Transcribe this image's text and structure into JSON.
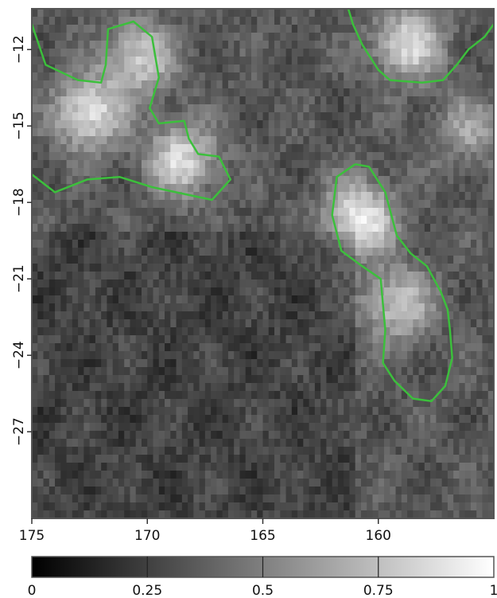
{
  "chart_data": {
    "type": "heatmap",
    "title": "",
    "xlabel": "",
    "ylabel": "",
    "colormap": "grayscale",
    "x_axis": {
      "range": [
        175,
        155
      ],
      "ticks": [
        175,
        170,
        165,
        160
      ],
      "tick_labels": [
        "175",
        "170",
        "165",
        "160"
      ]
    },
    "y_axis": {
      "range": [
        -30.4,
        -10.4
      ],
      "ticks": [
        -12,
        -15,
        -18,
        -21,
        -24,
        -27
      ],
      "tick_labels": [
        "−12",
        "−15",
        "−18",
        "−21",
        "−24",
        "−27"
      ]
    },
    "colorbar": {
      "range": [
        0,
        1
      ],
      "ticks": [
        0,
        0.25,
        0.5,
        0.75,
        1
      ],
      "tick_labels": [
        "0",
        "0.25",
        "0.5",
        "0.75",
        "1"
      ]
    },
    "bright_regions": [
      {
        "lon": 172.5,
        "lat": -14.5,
        "value": 0.9
      },
      {
        "lon": 170.3,
        "lat": -12.3,
        "value": 0.8
      },
      {
        "lon": 168.5,
        "lat": -16.3,
        "value": 0.85
      },
      {
        "lon": 160.8,
        "lat": -18.6,
        "value": 0.95
      },
      {
        "lon": 159.2,
        "lat": -22.0,
        "value": 0.78
      },
      {
        "lon": 158.7,
        "lat": -11.8,
        "value": 0.85
      },
      {
        "lon": 156.0,
        "lat": -15.2,
        "value": 0.62
      }
    ],
    "contour_color": "#3cbf3c",
    "contour_level": 0.75,
    "contours": [
      [
        [
          175,
          -11
        ],
        [
          174.4,
          -12.6
        ],
        [
          173,
          -13.2
        ],
        [
          172,
          -13.3
        ],
        [
          171.8,
          -12.6
        ],
        [
          171.7,
          -11.2
        ],
        [
          170.6,
          -10.9
        ],
        [
          169.8,
          -11.5
        ],
        [
          169.5,
          -13.1
        ],
        [
          169.9,
          -14.3
        ],
        [
          169.5,
          -14.9
        ],
        [
          168.4,
          -14.8
        ],
        [
          168.2,
          -15.5
        ],
        [
          167.8,
          -16.1
        ],
        [
          166.9,
          -16.2
        ],
        [
          166.4,
          -17.1
        ],
        [
          167.2,
          -17.9
        ],
        [
          169.8,
          -17.4
        ],
        [
          171.2,
          -17.0
        ],
        [
          172.6,
          -17.1
        ],
        [
          174,
          -17.6
        ],
        [
          175,
          -16.9
        ]
      ],
      [
        [
          161.0,
          -16.5
        ],
        [
          160.4,
          -16.6
        ],
        [
          159.7,
          -17.6
        ],
        [
          159.2,
          -19.3
        ],
        [
          158.6,
          -20.0
        ],
        [
          157.9,
          -20.5
        ],
        [
          157.3,
          -21.5
        ],
        [
          157.0,
          -22.2
        ],
        [
          156.9,
          -23.0
        ],
        [
          156.8,
          -24.1
        ],
        [
          157.1,
          -25.2
        ],
        [
          157.7,
          -25.8
        ],
        [
          158.5,
          -25.7
        ],
        [
          159.3,
          -25.0
        ],
        [
          159.8,
          -24.3
        ],
        [
          159.7,
          -23.0
        ],
        [
          159.8,
          -22.0
        ],
        [
          159.9,
          -21.0
        ],
        [
          160.7,
          -20.5
        ],
        [
          161.6,
          -19.9
        ],
        [
          162.0,
          -18.5
        ],
        [
          161.8,
          -17.0
        ],
        [
          161.0,
          -16.5
        ]
      ],
      [
        [
          161.3,
          -10.4
        ],
        [
          161.1,
          -11.0
        ],
        [
          160.7,
          -11.8
        ],
        [
          160.0,
          -12.8
        ],
        [
          159.5,
          -13.2
        ],
        [
          158.1,
          -13.3
        ],
        [
          157.2,
          -13.2
        ],
        [
          156.6,
          -12.6
        ],
        [
          156.1,
          -12.0
        ],
        [
          155.4,
          -11.5
        ],
        [
          155.0,
          -11.0
        ]
      ]
    ]
  }
}
